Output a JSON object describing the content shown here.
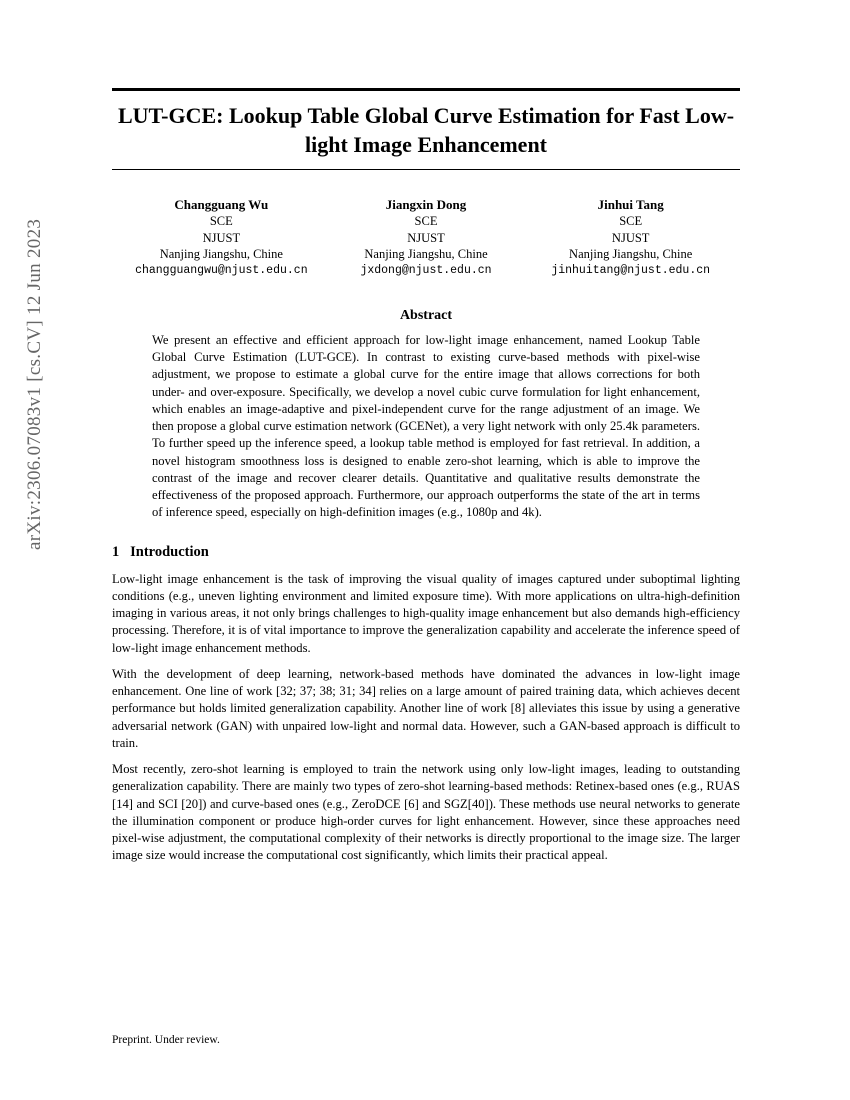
{
  "arxiv_label": "arXiv:2306.07083v1  [cs.CV]  12 Jun 2023",
  "title": "LUT-GCE: Lookup Table Global Curve Estimation for Fast Low-light Image Enhancement",
  "authors": [
    {
      "name": "Changguang Wu",
      "dept": "SCE",
      "institution": "NJUST",
      "location": "Nanjing Jiangshu, Chine",
      "email": "changguangwu@njust.edu.cn"
    },
    {
      "name": "Jiangxin Dong",
      "dept": "SCE",
      "institution": "NJUST",
      "location": "Nanjing Jiangshu, Chine",
      "email": "jxdong@njust.edu.cn"
    },
    {
      "name": "Jinhui Tang",
      "dept": "SCE",
      "institution": "NJUST",
      "location": "Nanjing Jiangshu, Chine",
      "email": "jinhuitang@njust.edu.cn"
    }
  ],
  "abstract_heading": "Abstract",
  "abstract_body": "We present an effective and efficient approach for low-light image enhancement, named Lookup Table Global Curve Estimation (LUT-GCE). In contrast to existing curve-based methods with pixel-wise adjustment, we propose to estimate a global curve for the entire image that allows corrections for both under- and over-exposure. Specifically, we develop a novel cubic curve formulation for light enhancement, which enables an image-adaptive and pixel-independent curve for the range adjustment of an image. We then propose a global curve estimation network (GCENet), a very light network with only 25.4k parameters. To further speed up the inference speed, a lookup table method is employed for fast retrieval. In addition, a novel histogram smoothness loss is designed to enable zero-shot learning, which is able to improve the contrast of the image and recover clearer details. Quantitative and qualitative results demonstrate the effectiveness of the proposed approach. Furthermore, our approach outperforms the state of the art in terms of inference speed, especially on high-definition images (e.g., 1080p and 4k).",
  "section_number": "1",
  "section_title": "Introduction",
  "paragraphs": [
    "Low-light image enhancement is the task of improving the visual quality of images captured under suboptimal lighting conditions (e.g., uneven lighting environment and limited exposure time). With more applications on ultra-high-definition imaging in various areas, it not only brings challenges to high-quality image enhancement but also demands high-efficiency processing. Therefore, it is of vital importance to improve the generalization capability and accelerate the inference speed of low-light image enhancement methods.",
    "With the development of deep learning, network-based methods have dominated the advances in low-light image enhancement. One line of work [32; 37; 38; 31; 34] relies on a large amount of paired training data, which achieves decent performance but holds limited generalization capability. Another line of work [8] alleviates this issue by using a generative adversarial network (GAN) with unpaired low-light and normal data. However, such a GAN-based approach is difficult to train.",
    "Most recently, zero-shot learning is employed to train the network using only low-light images, leading to outstanding generalization capability. There are mainly two types of zero-shot learning-based methods: Retinex-based ones (e.g., RUAS [14] and SCI [20]) and curve-based ones (e.g., ZeroDCE [6] and SGZ[40]). These methods use neural networks to generate the illumination component or produce high-order curves for light enhancement. However, since these approaches need pixel-wise adjustment, the computational complexity of their networks is directly proportional to the image size. The larger image size would increase the computational cost significantly, which limits their practical appeal."
  ],
  "footer": "Preprint. Under review."
}
